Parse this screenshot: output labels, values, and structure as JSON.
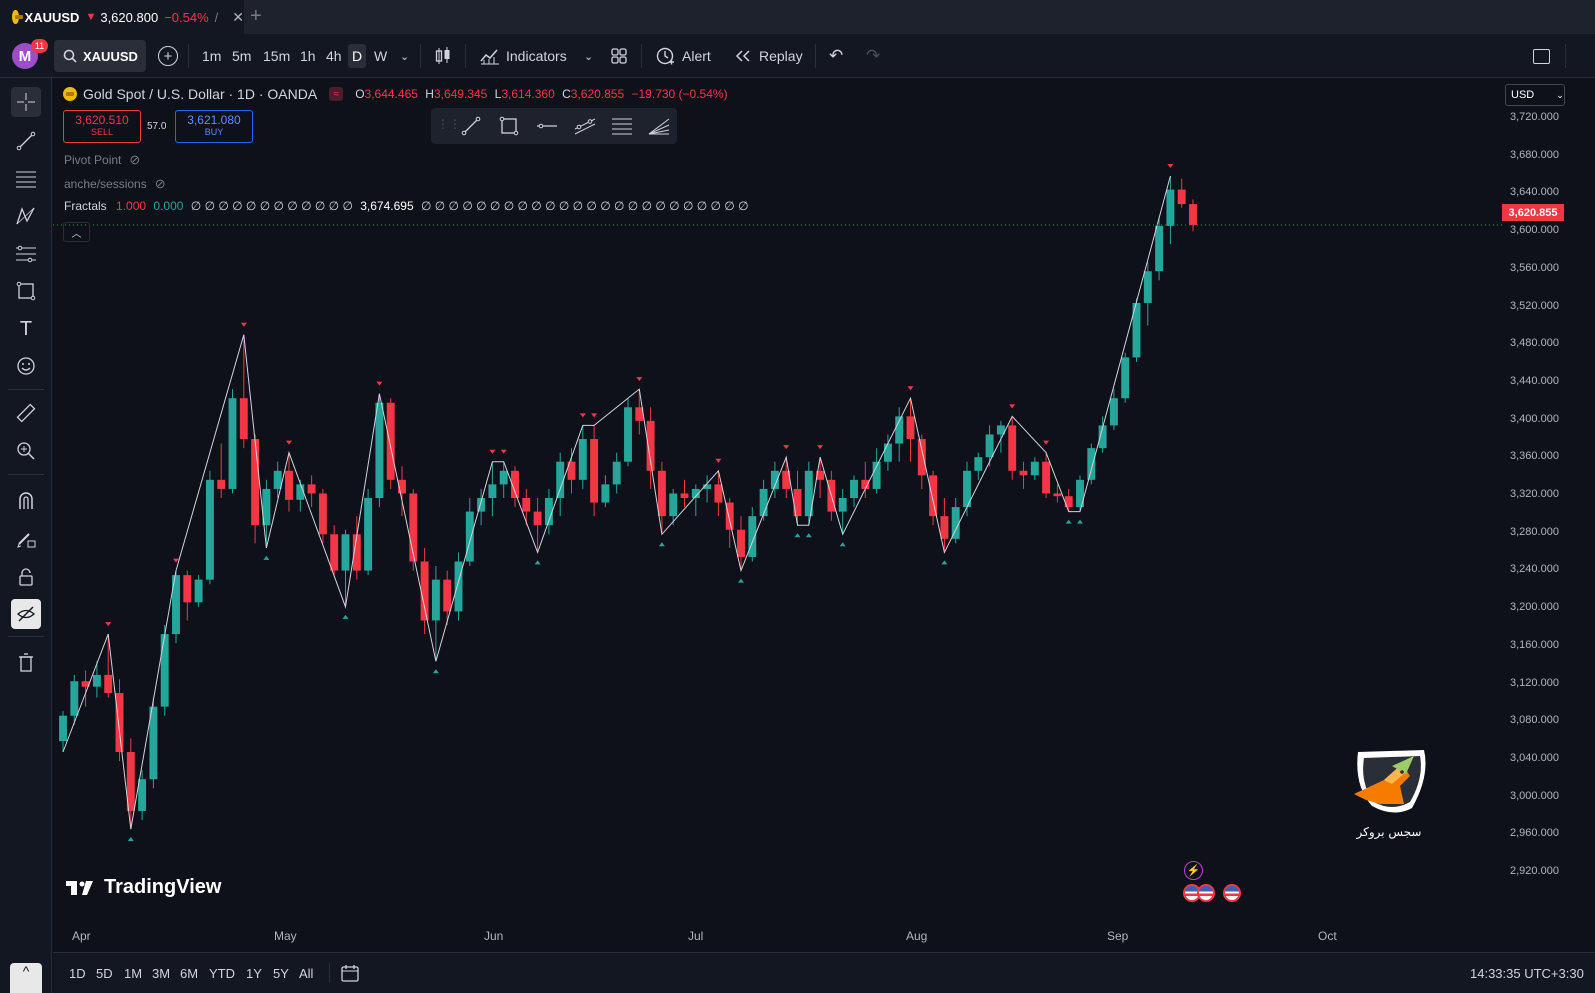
{
  "tab": {
    "symbol": "XAUUSD",
    "arrow": "▼",
    "price": "3,620.800",
    "change": "−0.54%",
    "extra": "/",
    "close": "✕",
    "new_tab": "+"
  },
  "toolbar": {
    "avatar_letter": "M",
    "badge": "11",
    "symbol": "XAUUSD",
    "intervals": [
      "1m",
      "5m",
      "15m",
      "1h",
      "4h",
      "D",
      "W"
    ],
    "active_interval": "D",
    "indicators": "Indicators",
    "alert": "Alert",
    "replay": "Replay"
  },
  "legend": {
    "title": "Gold Spot / U.S. Dollar · 1D · OANDA",
    "o_label": "O",
    "o": "3,644.465",
    "h_label": "H",
    "h": "3,649.345",
    "l_label": "L",
    "l": "3,614.360",
    "c_label": "C",
    "c": "3,620.855",
    "chg": "−19.730 (−0.54%)",
    "sell_price": "3,620.510",
    "sell_label": "SELL",
    "spread": "57.0",
    "buy_price": "3,621.080",
    "buy_label": "BUY",
    "ind1": "Pivot Point",
    "ind2": "anche/sessions",
    "ind3_name": "Fractals",
    "ind3_v1": "1.000",
    "ind3_v2": "0.000",
    "ind3_zeros_a": "∅ ∅ ∅ ∅ ∅ ∅ ∅ ∅ ∅ ∅ ∅ ∅",
    "ind3_val": "3,674.695",
    "ind3_zeros_b": "∅ ∅ ∅ ∅ ∅ ∅ ∅ ∅ ∅ ∅ ∅ ∅ ∅ ∅ ∅ ∅ ∅ ∅ ∅ ∅ ∅ ∅ ∅ ∅"
  },
  "axis": {
    "currency": "USD",
    "current_price": "3,620.855",
    "ticks": [
      "3,720.000",
      "3,680.000",
      "3,640.000",
      "3,600.000",
      "3,560.000",
      "3,520.000",
      "3,480.000",
      "3,440.000",
      "3,400.000",
      "3,360.000",
      "3,320.000",
      "3,280.000",
      "3,240.000",
      "3,200.000",
      "3,160.000",
      "3,120.000",
      "3,080.000",
      "3,040.000",
      "3,000.000",
      "2,960.000",
      "2,920.000"
    ],
    "months": [
      "Apr",
      "May",
      "Jun",
      "Jul",
      "Aug",
      "Sep",
      "Oct"
    ]
  },
  "watermark": {
    "brand": "TradingView",
    "logo_text": "سجس بروکر"
  },
  "bottom": {
    "ranges": [
      "1D",
      "5D",
      "1M",
      "3M",
      "6M",
      "YTD",
      "1Y",
      "5Y",
      "All"
    ],
    "time": "14:33:35 UTC+3:30"
  },
  "colors": {
    "up": "#26a69a",
    "down": "#f23645",
    "bg": "#0f111a",
    "accent": "#2962ff"
  },
  "chart_data": {
    "type": "candlestick",
    "price_range": [
      2900,
      3740
    ],
    "x_ticks": [
      "Apr",
      "May",
      "Jun",
      "Jul",
      "Aug",
      "Sep",
      "Oct"
    ],
    "candles": [
      [
        3052,
        3085,
        3040,
        3080
      ],
      [
        3080,
        3125,
        3070,
        3118
      ],
      [
        3118,
        3130,
        3090,
        3112
      ],
      [
        3112,
        3140,
        3100,
        3125
      ],
      [
        3125,
        3170,
        3100,
        3105
      ],
      [
        3105,
        3120,
        3030,
        3040
      ],
      [
        3040,
        3055,
        2955,
        2975
      ],
      [
        2975,
        3020,
        2965,
        3010
      ],
      [
        3010,
        3100,
        3000,
        3090
      ],
      [
        3090,
        3180,
        3080,
        3170
      ],
      [
        3170,
        3240,
        3160,
        3235
      ],
      [
        3235,
        3240,
        3185,
        3205
      ],
      [
        3205,
        3235,
        3200,
        3230
      ],
      [
        3230,
        3350,
        3225,
        3340
      ],
      [
        3340,
        3380,
        3320,
        3330
      ],
      [
        3330,
        3440,
        3325,
        3430
      ],
      [
        3430,
        3500,
        3375,
        3385
      ],
      [
        3385,
        3390,
        3270,
        3290
      ],
      [
        3290,
        3340,
        3265,
        3330
      ],
      [
        3330,
        3360,
        3320,
        3350
      ],
      [
        3350,
        3370,
        3305,
        3318
      ],
      [
        3318,
        3340,
        3305,
        3335
      ],
      [
        3335,
        3345,
        3310,
        3325
      ],
      [
        3325,
        3330,
        3270,
        3280
      ],
      [
        3280,
        3290,
        3235,
        3240
      ],
      [
        3240,
        3285,
        3200,
        3280
      ],
      [
        3280,
        3300,
        3230,
        3240
      ],
      [
        3240,
        3330,
        3235,
        3320
      ],
      [
        3320,
        3435,
        3310,
        3425
      ],
      [
        3425,
        3430,
        3330,
        3340
      ],
      [
        3340,
        3355,
        3300,
        3325
      ],
      [
        3325,
        3330,
        3240,
        3250
      ],
      [
        3250,
        3265,
        3170,
        3185
      ],
      [
        3185,
        3245,
        3140,
        3230
      ],
      [
        3230,
        3240,
        3180,
        3195
      ],
      [
        3195,
        3260,
        3185,
        3250
      ],
      [
        3250,
        3320,
        3245,
        3305
      ],
      [
        3305,
        3330,
        3290,
        3320
      ],
      [
        3320,
        3360,
        3300,
        3335
      ],
      [
        3335,
        3360,
        3320,
        3350
      ],
      [
        3350,
        3355,
        3310,
        3320
      ],
      [
        3320,
        3330,
        3290,
        3305
      ],
      [
        3305,
        3320,
        3260,
        3290
      ],
      [
        3290,
        3330,
        3280,
        3320
      ],
      [
        3320,
        3370,
        3300,
        3360
      ],
      [
        3360,
        3375,
        3325,
        3340
      ],
      [
        3340,
        3400,
        3330,
        3385
      ],
      [
        3385,
        3400,
        3300,
        3315
      ],
      [
        3315,
        3345,
        3310,
        3335
      ],
      [
        3335,
        3370,
        3325,
        3360
      ],
      [
        3360,
        3430,
        3355,
        3420
      ],
      [
        3420,
        3440,
        3390,
        3405
      ],
      [
        3405,
        3420,
        3330,
        3350
      ],
      [
        3350,
        3360,
        3280,
        3300
      ],
      [
        3300,
        3330,
        3290,
        3325
      ],
      [
        3325,
        3340,
        3310,
        3320
      ],
      [
        3320,
        3335,
        3300,
        3330
      ],
      [
        3330,
        3345,
        3315,
        3335
      ],
      [
        3335,
        3350,
        3300,
        3315
      ],
      [
        3315,
        3320,
        3265,
        3285
      ],
      [
        3285,
        3300,
        3240,
        3255
      ],
      [
        3255,
        3310,
        3250,
        3300
      ],
      [
        3300,
        3340,
        3295,
        3330
      ],
      [
        3330,
        3360,
        3320,
        3350
      ],
      [
        3350,
        3365,
        3320,
        3330
      ],
      [
        3330,
        3350,
        3290,
        3300
      ],
      [
        3300,
        3360,
        3290,
        3350
      ],
      [
        3350,
        3365,
        3320,
        3340
      ],
      [
        3340,
        3350,
        3295,
        3305
      ],
      [
        3305,
        3330,
        3280,
        3320
      ],
      [
        3320,
        3345,
        3310,
        3340
      ],
      [
        3340,
        3360,
        3320,
        3330
      ],
      [
        3330,
        3375,
        3325,
        3360
      ],
      [
        3360,
        3390,
        3350,
        3380
      ],
      [
        3380,
        3420,
        3360,
        3410
      ],
      [
        3410,
        3430,
        3360,
        3385
      ],
      [
        3385,
        3390,
        3330,
        3345
      ],
      [
        3345,
        3350,
        3290,
        3300
      ],
      [
        3300,
        3320,
        3260,
        3275
      ],
      [
        3275,
        3320,
        3270,
        3310
      ],
      [
        3310,
        3360,
        3300,
        3350
      ],
      [
        3350,
        3370,
        3340,
        3365
      ],
      [
        3365,
        3400,
        3355,
        3390
      ],
      [
        3390,
        3405,
        3370,
        3400
      ],
      [
        3400,
        3410,
        3340,
        3350
      ],
      [
        3350,
        3360,
        3330,
        3345
      ],
      [
        3345,
        3365,
        3340,
        3360
      ],
      [
        3360,
        3370,
        3320,
        3325
      ],
      [
        3325,
        3335,
        3315,
        3322
      ],
      [
        3322,
        3330,
        3305,
        3310
      ],
      [
        3310,
        3345,
        3305,
        3340
      ],
      [
        3340,
        3380,
        3335,
        3375
      ],
      [
        3375,
        3410,
        3370,
        3400
      ],
      [
        3400,
        3440,
        3395,
        3430
      ],
      [
        3430,
        3480,
        3425,
        3475
      ],
      [
        3475,
        3540,
        3470,
        3535
      ],
      [
        3535,
        3580,
        3510,
        3570
      ],
      [
        3570,
        3630,
        3560,
        3620
      ],
      [
        3620,
        3675,
        3600,
        3660
      ],
      [
        3660,
        3672,
        3640,
        3644
      ],
      [
        3644,
        3649,
        3614,
        3621
      ]
    ]
  }
}
